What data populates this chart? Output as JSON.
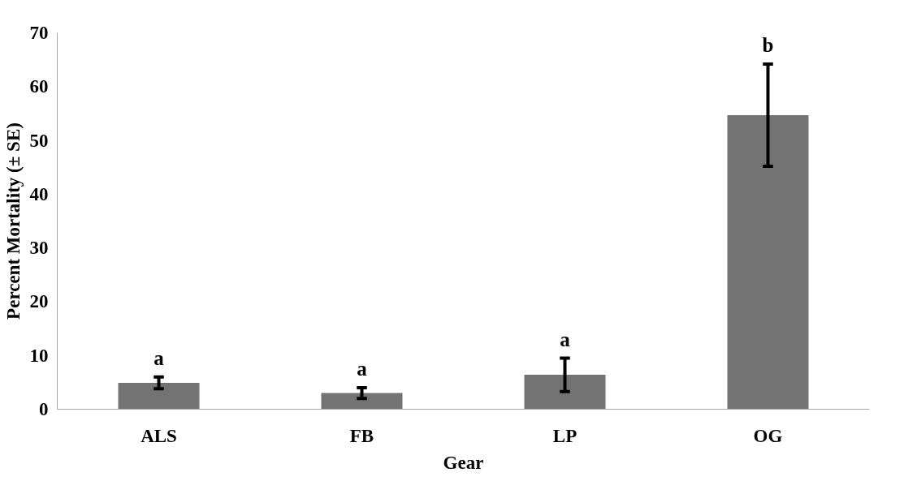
{
  "chart_data": {
    "type": "bar",
    "xlabel": "Gear",
    "ylabel": "Percent Mortality (± SE)",
    "categories": [
      "ALS",
      "FB",
      "LP",
      "OG"
    ],
    "values": [
      4.9,
      3.0,
      6.4,
      54.7
    ],
    "errors": [
      1.1,
      1.0,
      3.1,
      9.5
    ],
    "color": "#737373",
    "ylim": [
      0,
      70
    ],
    "yticks": [
      0,
      10,
      20,
      30,
      40,
      50,
      60,
      70
    ],
    "grid": false,
    "annotations": [
      "a",
      "a",
      "a",
      "b"
    ]
  }
}
